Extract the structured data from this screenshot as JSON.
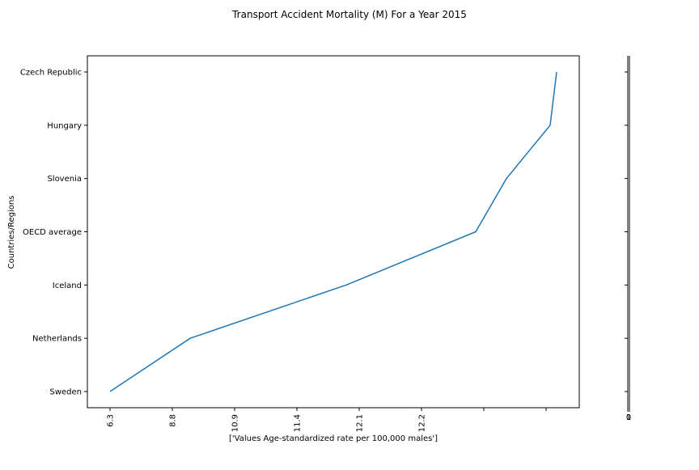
{
  "chart_data": {
    "type": "line",
    "title": "Transport Accident Mortality (M) For a Year 2015",
    "xlabel": "['Values Age-standardized rate per 100,000 males']",
    "ylabel": "Countries/Regions",
    "categories": [
      "Sweden",
      "Netherlands",
      "Iceland",
      "OECD average",
      "Slovenia",
      "Hungary",
      "Czech Republic"
    ],
    "x_tick_labels": [
      "6.3",
      "8.8",
      "10.9",
      "11.4",
      "12.1",
      "12.2",
      "",
      ""
    ],
    "series": [
      {
        "values": [
          6.3,
          8.8,
          11.4,
          12.2,
          12.5,
          13.25,
          13.3
        ]
      }
    ],
    "grid": false,
    "line_color": "#1f77b4",
    "side_axis_tick_labels": [
      "0",
      "1"
    ]
  }
}
